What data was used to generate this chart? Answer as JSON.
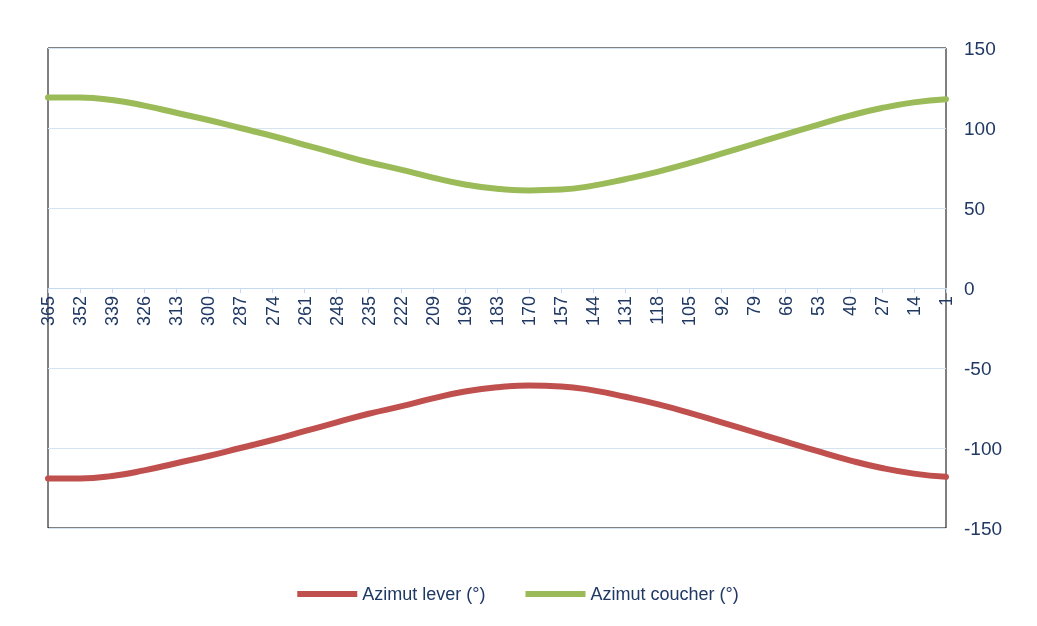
{
  "chart_data": {
    "type": "line",
    "x": [
      365,
      352,
      339,
      326,
      313,
      300,
      287,
      274,
      261,
      248,
      235,
      222,
      209,
      196,
      183,
      170,
      157,
      144,
      131,
      118,
      105,
      92,
      79,
      66,
      53,
      40,
      27,
      14,
      1
    ],
    "series": [
      {
        "name": "Azimut lever (°)",
        "color": "#c0504d",
        "values": [
          -119,
          -119,
          -117.5,
          -114,
          -109.5,
          -105,
          -100,
          -95,
          -89.5,
          -84,
          -78.6,
          -74,
          -69,
          -64.7,
          -62,
          -61,
          -61.5,
          -64,
          -68,
          -72.6,
          -78,
          -84,
          -90,
          -96,
          -102,
          -107.7,
          -112.5,
          -116,
          -118
        ]
      },
      {
        "name": "Azimut coucher (°)",
        "color": "#9bbb59",
        "values": [
          119,
          119,
          117.5,
          114,
          109.5,
          105,
          100,
          95,
          89.5,
          84,
          78.6,
          74,
          69,
          64.7,
          62,
          61,
          61.5,
          64,
          68,
          72.6,
          78,
          84,
          90,
          96,
          102,
          107.7,
          112.5,
          116,
          118
        ]
      }
    ],
    "xlim": [
      365,
      1
    ],
    "xticks": [
      365,
      352,
      339,
      326,
      313,
      300,
      287,
      274,
      261,
      248,
      235,
      222,
      209,
      196,
      183,
      170,
      157,
      144,
      131,
      118,
      105,
      92,
      79,
      66,
      53,
      40,
      27,
      14,
      1
    ],
    "ylim": [
      -150,
      150
    ],
    "yticks": [
      -150,
      -100,
      -50,
      0,
      50,
      100,
      150
    ],
    "grid": "y",
    "legend": "bottom",
    "marker": "none",
    "line_style": "solid"
  }
}
